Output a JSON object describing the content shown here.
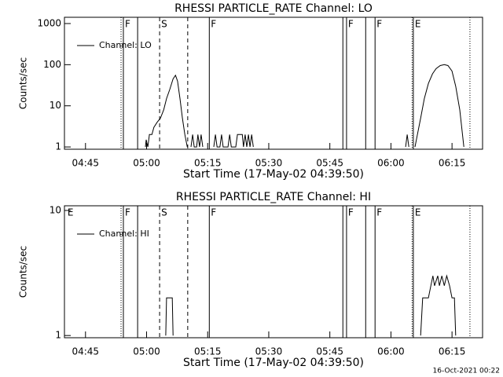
{
  "chart_data": [
    {
      "type": "line",
      "title": "RHESSI PARTICLE_RATE Channel: LO",
      "ylabel": "Counts/sec",
      "xlabel": "Start Time (17-May-02 04:39:50)",
      "log_y": true,
      "ylim": [
        0.88,
        1420
      ],
      "yticks": [
        1,
        10,
        100,
        1000
      ],
      "xlim": [
        279.83,
        382.5
      ],
      "xticks": [
        {
          "value": 285,
          "label": "04:45"
        },
        {
          "value": 300,
          "label": "05:00"
        },
        {
          "value": 315,
          "label": "05:15"
        },
        {
          "value": 330,
          "label": "05:30"
        },
        {
          "value": 345,
          "label": "05:45"
        },
        {
          "value": 360,
          "label": "06:00"
        },
        {
          "value": 375,
          "label": "06:15"
        }
      ],
      "legend": "upper left",
      "series": [
        {
          "name": "Channel: LO",
          "color": "#000000",
          "x": [
            299.7,
            299.9,
            300.3,
            300.7,
            301.3,
            301.8,
            302.6,
            303.4,
            304.2,
            304.9,
            305.7,
            306.5,
            307.1,
            307.6,
            308.2,
            308.8,
            309.4,
            310.0,
            310.5,
            310.9,
            311.3,
            311.7,
            312.3,
            312.6,
            313.0,
            313.4,
            313.8,
            315.0,
            316.5,
            316.9,
            317.3,
            318.0,
            318.4,
            318.8,
            320.0,
            320.4,
            320.8,
            321.9,
            322.3,
            322.7,
            323.5,
            323.8,
            324.2,
            324.6,
            325.0,
            325.4,
            325.8,
            326.2,
            340.0,
            363.6,
            364.0,
            364.4,
            365.0,
            365.9,
            366.5,
            367.3,
            368.2,
            369.2,
            370.2,
            371.1,
            372.1,
            373.1,
            374.0,
            375.0,
            375.9,
            376.9,
            377.9
          ],
          "values": [
            1,
            1.5,
            1,
            2,
            2,
            3,
            4,
            5,
            8,
            15,
            25,
            45,
            55,
            40,
            15,
            5,
            2,
            1,
            null,
            1,
            2,
            1,
            1,
            2,
            1,
            2,
            1,
            null,
            1,
            2,
            1,
            1,
            2,
            1,
            1,
            2,
            1,
            1,
            2,
            2,
            2,
            1,
            2,
            1,
            2,
            1,
            2,
            1,
            null,
            1,
            2,
            1,
            null,
            1,
            2,
            5,
            15,
            35,
            60,
            80,
            95,
            100,
            95,
            70,
            30,
            8,
            1
          ]
        }
      ],
      "markers": [
        {
          "x": 293.73,
          "style": "dotted"
        },
        {
          "x": 294.3,
          "style": "solid",
          "label": "F"
        },
        {
          "x": 297.8,
          "style": "solid"
        },
        {
          "x": 303.2,
          "style": "dashed",
          "label": "S"
        },
        {
          "x": 310.1,
          "style": "dashed"
        },
        {
          "x": 315.4,
          "style": "solid",
          "label": "F"
        },
        {
          "x": 348.2,
          "style": "solid"
        },
        {
          "x": 349.1,
          "style": "solid",
          "label": "F"
        },
        {
          "x": 353.8,
          "style": "solid"
        },
        {
          "x": 356.1,
          "style": "solid",
          "label": "F"
        },
        {
          "x": 365.2,
          "style": "dotted"
        },
        {
          "x": 365.5,
          "style": "solid",
          "label": "E"
        },
        {
          "x": 379.4,
          "style": "dotted"
        }
      ]
    },
    {
      "type": "line",
      "title": "RHESSI PARTICLE_RATE Channel: HI",
      "ylabel": "Counts/sec",
      "xlabel": "Start Time (17-May-02 04:39:50)",
      "log_y": true,
      "ylim": [
        0.96,
        10.9
      ],
      "yticks": [
        1,
        10
      ],
      "xlim": [
        279.83,
        382.5
      ],
      "xticks": [
        {
          "value": 285,
          "label": "04:45"
        },
        {
          "value": 300,
          "label": "05:00"
        },
        {
          "value": 315,
          "label": "05:15"
        },
        {
          "value": 330,
          "label": "05:30"
        },
        {
          "value": 345,
          "label": "05:45"
        },
        {
          "value": 360,
          "label": "06:00"
        },
        {
          "value": 375,
          "label": "06:15"
        }
      ],
      "legend": "upper left",
      "series": [
        {
          "name": "Channel: HI",
          "color": "#000000",
          "x": [
            304.7,
            304.9,
            306.3,
            306.5,
            340.0,
            367.3,
            367.8,
            369.2,
            369.8,
            370.3,
            370.7,
            371.5,
            371.9,
            372.5,
            373.1,
            373.7,
            374.4,
            375.0,
            375.6,
            375.9
          ],
          "values": [
            1,
            2,
            2,
            1,
            null,
            1,
            2,
            2,
            2.5,
            3,
            2.5,
            3,
            2.5,
            3,
            2.5,
            3,
            2.5,
            2,
            2,
            1
          ]
        }
      ],
      "markers": [
        {
          "x": 280.2,
          "style": "none",
          "label": "E"
        },
        {
          "x": 293.73,
          "style": "dotted"
        },
        {
          "x": 294.3,
          "style": "solid",
          "label": "F"
        },
        {
          "x": 297.8,
          "style": "solid"
        },
        {
          "x": 303.2,
          "style": "dashed",
          "label": "S"
        },
        {
          "x": 310.1,
          "style": "dashed"
        },
        {
          "x": 315.4,
          "style": "solid",
          "label": "F"
        },
        {
          "x": 348.2,
          "style": "solid"
        },
        {
          "x": 349.1,
          "style": "solid",
          "label": "F"
        },
        {
          "x": 353.8,
          "style": "solid"
        },
        {
          "x": 356.1,
          "style": "solid",
          "label": "F"
        },
        {
          "x": 365.2,
          "style": "dotted"
        },
        {
          "x": 365.5,
          "style": "solid",
          "label": "E"
        },
        {
          "x": 379.4,
          "style": "dotted"
        }
      ]
    }
  ],
  "footer": "16-Oct-2021 00:22"
}
